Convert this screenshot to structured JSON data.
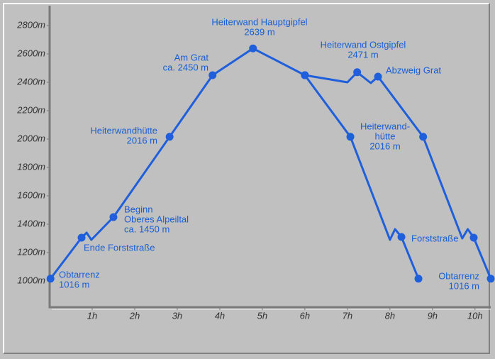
{
  "chart_data": {
    "type": "line",
    "xlim": [
      0,
      10.37
    ],
    "ylim": [
      815,
      2940
    ],
    "xticks": [
      {
        "value": 1,
        "label": "1h"
      },
      {
        "value": 2,
        "label": "2h"
      },
      {
        "value": 3,
        "label": "3h"
      },
      {
        "value": 4,
        "label": "4h"
      },
      {
        "value": 5,
        "label": "5h"
      },
      {
        "value": 6,
        "label": "6h"
      },
      {
        "value": 7,
        "label": "7h"
      },
      {
        "value": 8,
        "label": "8h"
      },
      {
        "value": 9,
        "label": "9h"
      },
      {
        "value": 10,
        "label": "10h"
      }
    ],
    "yticks": [
      {
        "value": 1000,
        "label": "1000m"
      },
      {
        "value": 1200,
        "label": "1200m"
      },
      {
        "value": 1400,
        "label": "1400m"
      },
      {
        "value": 1600,
        "label": "1600m"
      },
      {
        "value": 1800,
        "label": "1800m"
      },
      {
        "value": 2000,
        "label": "2000m"
      },
      {
        "value": 2200,
        "label": "2200m"
      },
      {
        "value": 2400,
        "label": "2400m"
      },
      {
        "value": 2600,
        "label": "2600m"
      },
      {
        "value": 2800,
        "label": "2800m"
      }
    ],
    "series": [
      {
        "color": "#1f5fdc",
        "x": [
          0.02,
          0.75,
          0.87,
          0.98,
          1.5,
          2.82,
          3.83,
          4.78,
          6.0
        ],
        "values": [
          1016,
          1305,
          1340,
          1290,
          1450,
          2016,
          2450,
          2639,
          2450
        ],
        "markers": [
          true,
          true,
          false,
          false,
          true,
          true,
          true,
          true,
          true
        ]
      },
      {
        "color": "#1f5fdc",
        "x": [
          6.0,
          7.07,
          8.0,
          8.12,
          8.27,
          8.67
        ],
        "values": [
          2450,
          2016,
          1290,
          1365,
          1310,
          1016
        ],
        "markers": [
          true,
          true,
          false,
          false,
          true,
          true
        ]
      },
      {
        "color": "#1f5fdc",
        "x": [
          6.0,
          7.0,
          7.23,
          7.55,
          7.72,
          8.78,
          9.7,
          9.83,
          9.97,
          10.37
        ],
        "values": [
          2450,
          2400,
          2471,
          2395,
          2440,
          2016,
          1300,
          1365,
          1305,
          1016
        ],
        "markers": [
          true,
          false,
          true,
          false,
          true,
          true,
          false,
          false,
          true,
          true
        ]
      }
    ],
    "annotations": [
      {
        "lines": [
          "Obtarrenz",
          "1016 m"
        ],
        "align": "start"
      },
      {
        "lines": [
          "Ende Forststraße"
        ],
        "align": "start"
      },
      {
        "lines": [
          "Beginn",
          "Oberes Alpeiltal",
          "ca. 1450 m"
        ],
        "align": "start"
      },
      {
        "lines": [
          "Heiterwandhütte",
          "2016 m"
        ],
        "align": "end"
      },
      {
        "lines": [
          "Am Grat",
          "ca. 2450 m"
        ],
        "align": "end"
      },
      {
        "lines": [
          "Heiterwand Hauptgipfel",
          "2639 m"
        ],
        "align": "middle"
      },
      {
        "lines": [
          "Heiterwand Ostgipfel",
          "2471 m"
        ],
        "align": "middle"
      },
      {
        "lines": [
          "Abzweig Grat"
        ],
        "align": "start"
      },
      {
        "lines": [
          "Heiterwand-",
          "hütte",
          "2016 m"
        ],
        "align": "middle"
      },
      {
        "lines": [
          "Forststraße"
        ],
        "align": "start"
      },
      {
        "lines": [
          "Obtarrenz",
          "1016 m"
        ],
        "align": "end"
      }
    ]
  }
}
